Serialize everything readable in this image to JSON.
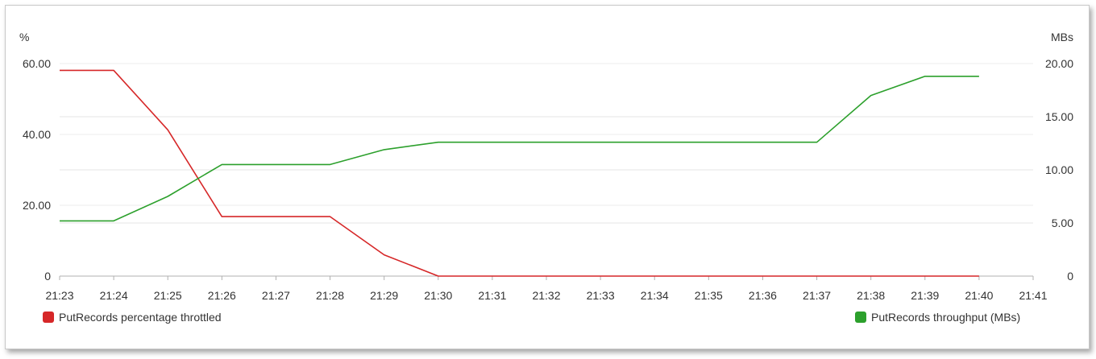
{
  "chart_data": {
    "type": "line",
    "left_axis_unit": "%",
    "right_axis_unit": "MBs",
    "ylim_left": [
      0,
      60
    ],
    "ylim_right": [
      0,
      20
    ],
    "yticks_left": [
      "0",
      "20.00",
      "40.00",
      "60.00"
    ],
    "yticks_right": [
      "0",
      "5.00",
      "10.00",
      "15.00",
      "20.00"
    ],
    "categories": [
      "21:23",
      "21:24",
      "21:25",
      "21:26",
      "21:27",
      "21:28",
      "21:29",
      "21:30",
      "21:31",
      "21:32",
      "21:33",
      "21:34",
      "21:35",
      "21:36",
      "21:37",
      "21:38",
      "21:39",
      "21:40",
      "21:41"
    ],
    "grid": true,
    "series": [
      {
        "name": "PutRecords percentage throttled",
        "axis": "left",
        "color": "#d62728",
        "x": [
          "21:23",
          "21:24",
          "21:25",
          "21:26",
          "21:27",
          "21:28",
          "21:29",
          "21:30",
          "21:31",
          "21:32",
          "21:33",
          "21:34",
          "21:35",
          "21:36",
          "21:37",
          "21:38",
          "21:39",
          "21:40"
        ],
        "values": [
          58.1,
          58.1,
          41.3,
          16.8,
          16.8,
          16.8,
          6.0,
          0,
          0,
          0,
          0,
          0,
          0,
          0,
          0,
          0,
          0,
          0
        ]
      },
      {
        "name": "PutRecords throughput (MBs)",
        "axis": "right",
        "color": "#2ca02c",
        "x": [
          "21:23",
          "21:24",
          "21:25",
          "21:26",
          "21:27",
          "21:28",
          "21:29",
          "21:30",
          "21:31",
          "21:32",
          "21:33",
          "21:34",
          "21:35",
          "21:36",
          "21:37",
          "21:38",
          "21:39",
          "21:40"
        ],
        "values": [
          5.2,
          5.2,
          7.5,
          10.5,
          10.5,
          10.5,
          11.9,
          12.6,
          12.6,
          12.6,
          12.6,
          12.6,
          12.6,
          12.6,
          12.6,
          17.0,
          18.8,
          18.8
        ]
      }
    ],
    "legend_left": "bottom-left",
    "legend_right": "bottom-right"
  }
}
